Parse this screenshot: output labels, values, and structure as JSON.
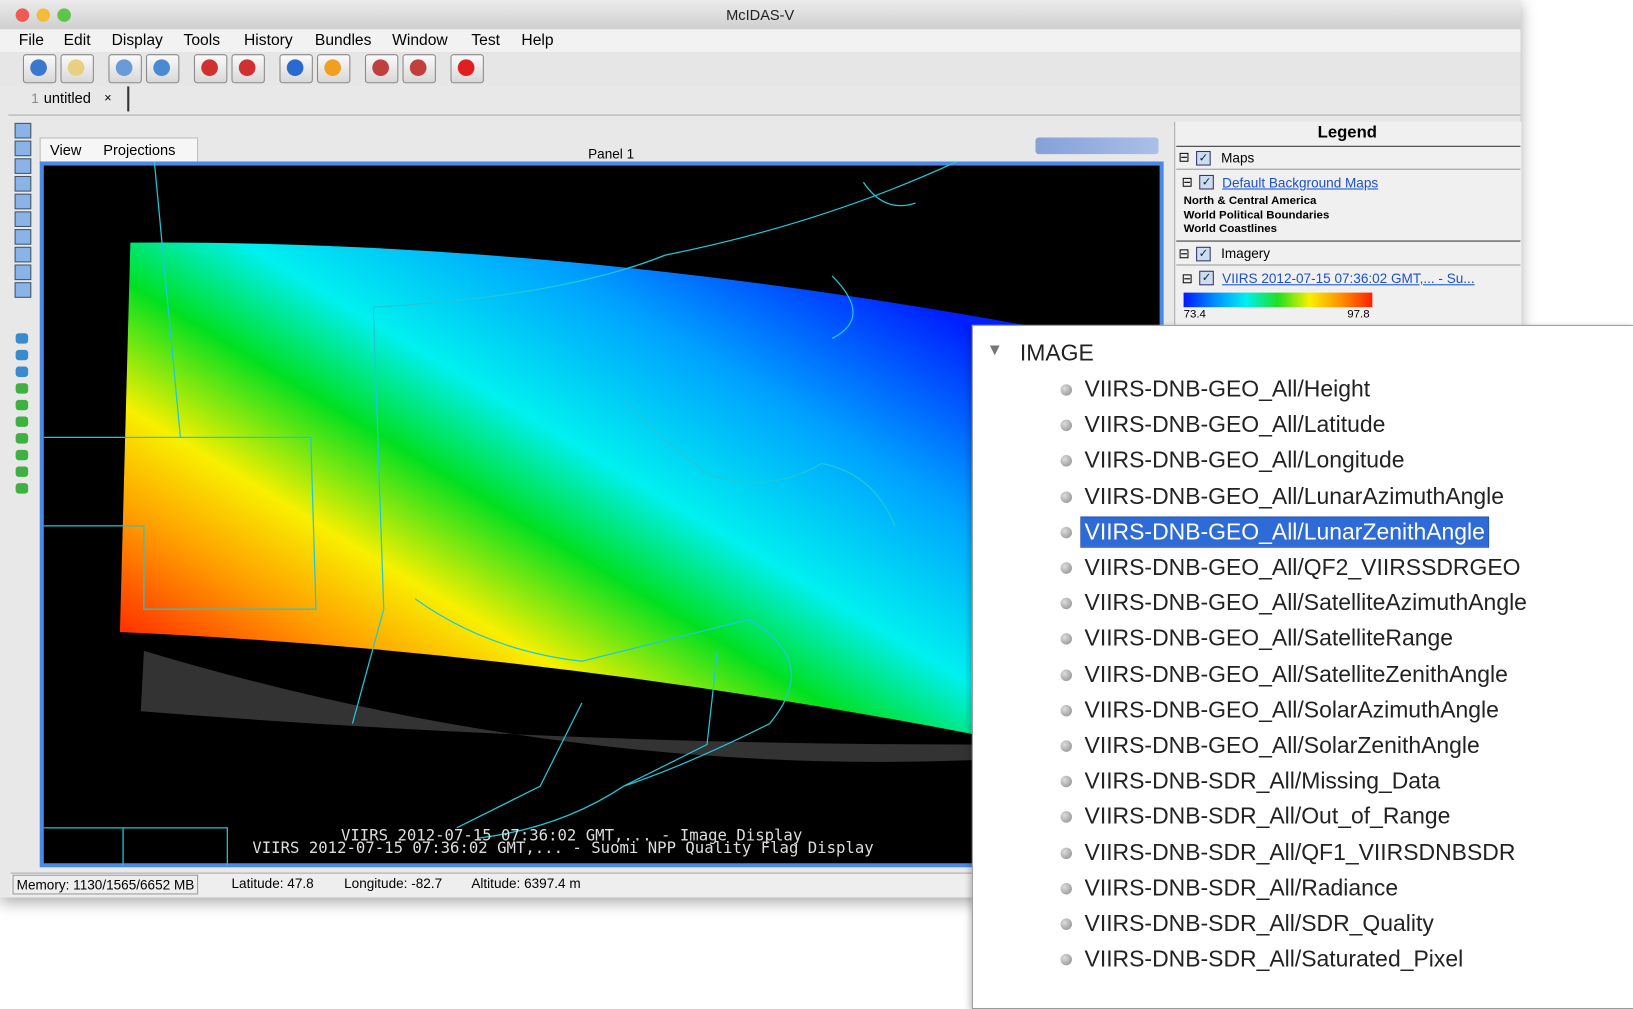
{
  "window": {
    "title": "McIDAS-V"
  },
  "menu": [
    "File",
    "Edit",
    "Display",
    "Tools",
    "History",
    "Bundles",
    "Window",
    "Test",
    "Help"
  ],
  "tab": {
    "number": "1",
    "label": "untitled",
    "close": "×"
  },
  "view_tabs": [
    "View",
    "Projections"
  ],
  "panel": {
    "title": "Panel 1"
  },
  "legend": {
    "title": "Legend",
    "maps": {
      "name": "Maps",
      "layer": "Default Background Maps",
      "items": [
        "North & Central America",
        "World Political Boundaries",
        "World Coastlines"
      ]
    },
    "imagery": {
      "name": "Imagery",
      "layer": "VIIRS 2012-07-15 07:36:02 GMT,... - Su...",
      "colorbar_min": 73.4,
      "colorbar_max": 97.8
    }
  },
  "display_labels": [
    "VIIRS 2012-07-15 07:36:02 GMT,... - Image Display",
    "VIIRS 2012-07-15 07:36:02 GMT,... - Suomi NPP Quality Flag Display"
  ],
  "status": {
    "memory": "Memory: 1130/1565/6652 MB",
    "latitude": "Latitude:  47.8",
    "longitude": "Longitude: -82.7",
    "altitude": "Altitude: 6397.4 m"
  },
  "tree": {
    "root": "IMAGE",
    "selected": 4,
    "items": [
      "VIIRS-DNB-GEO_All/Height",
      "VIIRS-DNB-GEO_All/Latitude",
      "VIIRS-DNB-GEO_All/Longitude",
      "VIIRS-DNB-GEO_All/LunarAzimuthAngle",
      "VIIRS-DNB-GEO_All/LunarZenithAngle",
      "VIIRS-DNB-GEO_All/QF2_VIIRSSDRGEO",
      "VIIRS-DNB-GEO_All/SatelliteAzimuthAngle",
      "VIIRS-DNB-GEO_All/SatelliteRange",
      "VIIRS-DNB-GEO_All/SatelliteZenithAngle",
      "VIIRS-DNB-GEO_All/SolarAzimuthAngle",
      "VIIRS-DNB-GEO_All/SolarZenithAngle",
      "VIIRS-DNB-SDR_All/Missing_Data",
      "VIIRS-DNB-SDR_All/Out_of_Range",
      "VIIRS-DNB-SDR_All/QF1_VIIRSDNBSDR",
      "VIIRS-DNB-SDR_All/Radiance",
      "VIIRS-DNB-SDR_All/SDR_Quality",
      "VIIRS-DNB-SDR_All/Saturated_Pixel"
    ]
  }
}
